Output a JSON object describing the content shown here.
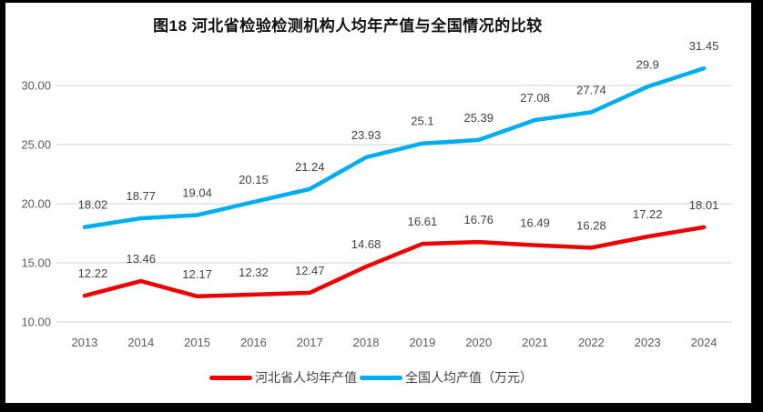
{
  "chart_data": {
    "type": "line",
    "title": "图18 河北省检验检测机构人均年产值与全国情况的比较",
    "categories": [
      "2013",
      "2014",
      "2015",
      "2016",
      "2017",
      "2018",
      "2019",
      "2020",
      "2021",
      "2022",
      "2023",
      "2024"
    ],
    "series": [
      {
        "name": "河北省人均年产值",
        "color": "#ee0000",
        "values": [
          12.22,
          13.46,
          12.17,
          12.32,
          12.47,
          14.68,
          16.61,
          16.76,
          16.49,
          16.28,
          17.22,
          18.01
        ],
        "labels": [
          "12.22",
          "13.46",
          "12.17",
          "12.32",
          "12.47",
          "14.68",
          "16.61",
          "16.76",
          "16.49",
          "16.28",
          "17.22",
          "18.01"
        ]
      },
      {
        "name": "全国人均产值（万元）",
        "color": "#00aeef",
        "values": [
          18.02,
          18.77,
          19.04,
          20.15,
          21.24,
          23.93,
          25.1,
          25.39,
          27.08,
          27.74,
          29.9,
          31.45
        ],
        "labels": [
          "18.02",
          "18.77",
          "19.04",
          "20.15",
          "21.24",
          "23.93",
          "25.1",
          "25.39",
          "27.08",
          "27.74",
          "29.9",
          "31.45"
        ]
      }
    ],
    "y_axis": {
      "min": 10,
      "max": 30,
      "step": 5,
      "tick_labels": [
        "10.00",
        "15.00",
        "20.00",
        "25.00",
        "30.00"
      ]
    },
    "grid": true,
    "legend_position": "bottom",
    "data_label_position": "above"
  },
  "colors": {
    "hebei_line": "#ee0000",
    "national_line": "#00aeef",
    "gridline": "#d9d9d9",
    "axis_text": "#595959",
    "data_label_text": "#404040",
    "frame": "#000000",
    "background": "#ffffff"
  }
}
